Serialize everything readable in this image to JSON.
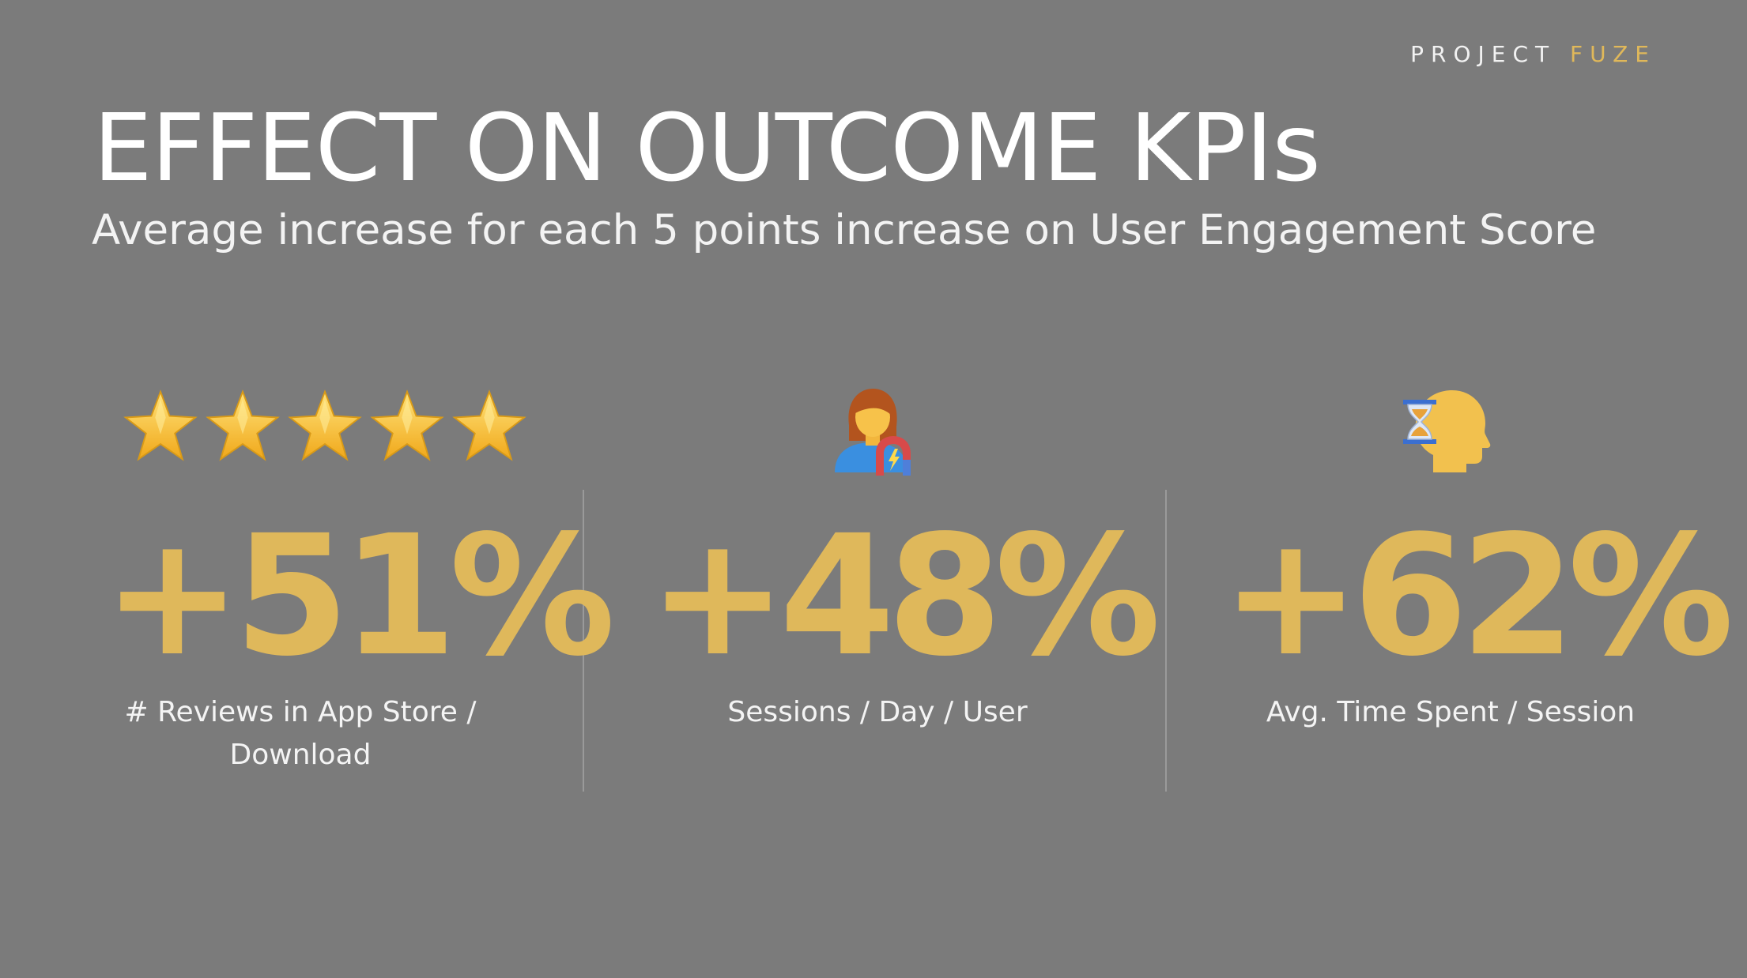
{
  "header": {
    "brand_prefix": "PROJECT",
    "brand_accent": "FUZE",
    "title": "EFFECT ON OUTCOME KPIs",
    "subtitle": "Average increase for each 5 points increase on User Engagement Score"
  },
  "colors": {
    "background": "#7b7b7b",
    "accent": "#dfb85b",
    "text": "#ffffff"
  },
  "kpis": [
    {
      "icon": "five-stars-icon",
      "value": "+51%",
      "label_line1": "# Reviews in App Store /",
      "label_line2": "Download"
    },
    {
      "icon": "person-magnet-icon",
      "value": "+48%",
      "label_line1": "Sessions / Day / User",
      "label_line2": ""
    },
    {
      "icon": "head-hourglass-icon",
      "value": "+62%",
      "label_line1": "Avg. Time Spent / Session",
      "label_line2": ""
    }
  ]
}
